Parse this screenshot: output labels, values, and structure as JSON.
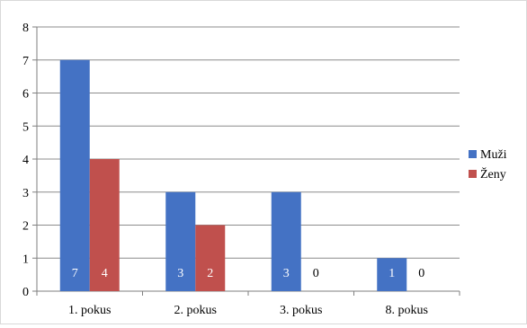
{
  "chart_data": {
    "type": "bar",
    "title": "",
    "xlabel": "",
    "ylabel": "",
    "categories": [
      "1. pokus",
      "2. pokus",
      "3. pokus",
      "8. pokus"
    ],
    "series": [
      {
        "name": "Muži",
        "values": [
          7,
          3,
          3,
          1
        ],
        "color": "#4472c4"
      },
      {
        "name": "Ženy",
        "values": [
          4,
          2,
          0,
          0
        ],
        "color": "#c0504d"
      }
    ],
    "ylim": [
      0,
      8
    ],
    "yticks": [
      0,
      1,
      2,
      3,
      4,
      5,
      6,
      7,
      8
    ],
    "grid": true,
    "legend_position": "right",
    "data_labels": true
  }
}
